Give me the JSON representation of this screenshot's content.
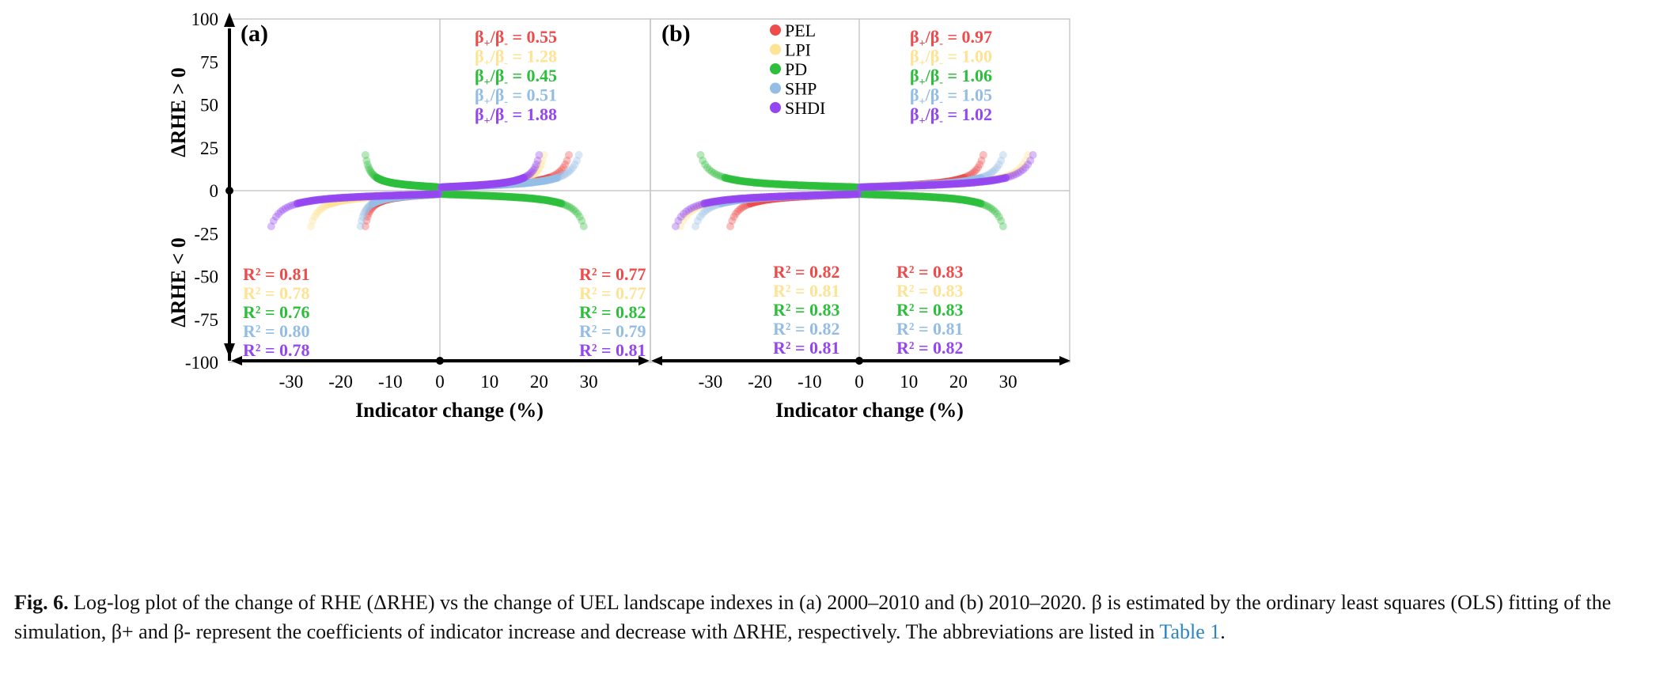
{
  "colors": {
    "PEL": "#ee4b4b",
    "LPI": "#fde393",
    "PD": "#2dbe3c",
    "SHP": "#94bde6",
    "SHDI": "#9446f0",
    "axis": "#000000",
    "grid": "#c8c8c8"
  },
  "chart_data": [
    {
      "type": "scatter",
      "panel_label": "(a)",
      "xlabel": "Indicator change (%)",
      "ylabel_top": "ΔRHE > 0",
      "ylabel_bottom": "ΔRHE < 0",
      "xlim": [
        -40,
        40
      ],
      "ylim": [
        -100,
        100
      ],
      "x_ticks": [
        "-30",
        "-20",
        "-10",
        "0",
        "10",
        "20",
        "30"
      ],
      "y_ticks": [
        "100",
        "75",
        "50",
        "25",
        "0",
        "-25",
        "-50",
        "-75",
        "-100"
      ],
      "grid": true,
      "series": [
        {
          "name": "PEL",
          "beta_ratio": "0.55",
          "r2_left": "0.81",
          "r2_right": "0.77",
          "x_min": -15,
          "x_max": 26
        },
        {
          "name": "LPI",
          "beta_ratio": "1.28",
          "r2_left": "0.78",
          "r2_right": "0.77",
          "x_min": -26,
          "x_max": 21
        },
        {
          "name": "PD",
          "beta_ratio": "0.45",
          "r2_left": "0.76",
          "r2_right": "0.82",
          "x_min": -15,
          "x_max": 29
        },
        {
          "name": "SHP",
          "beta_ratio": "0.51",
          "r2_left": "0.80",
          "r2_right": "0.79",
          "x_min": -16,
          "x_max": 28
        },
        {
          "name": "SHDI",
          "beta_ratio": "1.88",
          "r2_left": "0.78",
          "r2_right": "0.81",
          "x_min": -34,
          "x_max": 20
        }
      ]
    },
    {
      "type": "scatter",
      "panel_label": "(b)",
      "xlabel": "Indicator change (%)",
      "xlim": [
        -40,
        40
      ],
      "ylim": [
        -100,
        100
      ],
      "x_ticks": [
        "-30",
        "-20",
        "-10",
        "0",
        "10",
        "20",
        "30"
      ],
      "grid": true,
      "legend": [
        "PEL",
        "LPI",
        "PD",
        "SHP",
        "SHDI"
      ],
      "series": [
        {
          "name": "PEL",
          "beta_ratio": "0.97",
          "r2_left": "0.82",
          "r2_right": "0.83",
          "x_min": -26,
          "x_max": 25
        },
        {
          "name": "LPI",
          "beta_ratio": "1.00",
          "r2_left": "0.81",
          "r2_right": "0.83",
          "x_min": -36,
          "x_max": 34
        },
        {
          "name": "PD",
          "beta_ratio": "1.06",
          "r2_left": "0.83",
          "r2_right": "0.83",
          "x_min": -32,
          "x_max": 29
        },
        {
          "name": "SHP",
          "beta_ratio": "1.05",
          "r2_left": "0.82",
          "r2_right": "0.81",
          "x_min": -33,
          "x_max": 29
        },
        {
          "name": "SHDI",
          "beta_ratio": "1.02",
          "r2_left": "0.81",
          "r2_right": "0.82",
          "x_min": -37,
          "x_max": 35
        }
      ]
    }
  ],
  "caption": {
    "label": "Fig. 6.",
    "text": "Log-log plot of the change of RHE (ΔRHE) vs the change of UEL landscape indexes in (a) 2000–2010 and (b) 2010–2020. β is estimated by the ordinary least squares (OLS) fitting of the simulation, β+ and β- represent the coefficients of indicator increase and decrease with ΔRHE, respectively. The abbreviations are listed in",
    "link": "Table 1",
    "end": "."
  }
}
